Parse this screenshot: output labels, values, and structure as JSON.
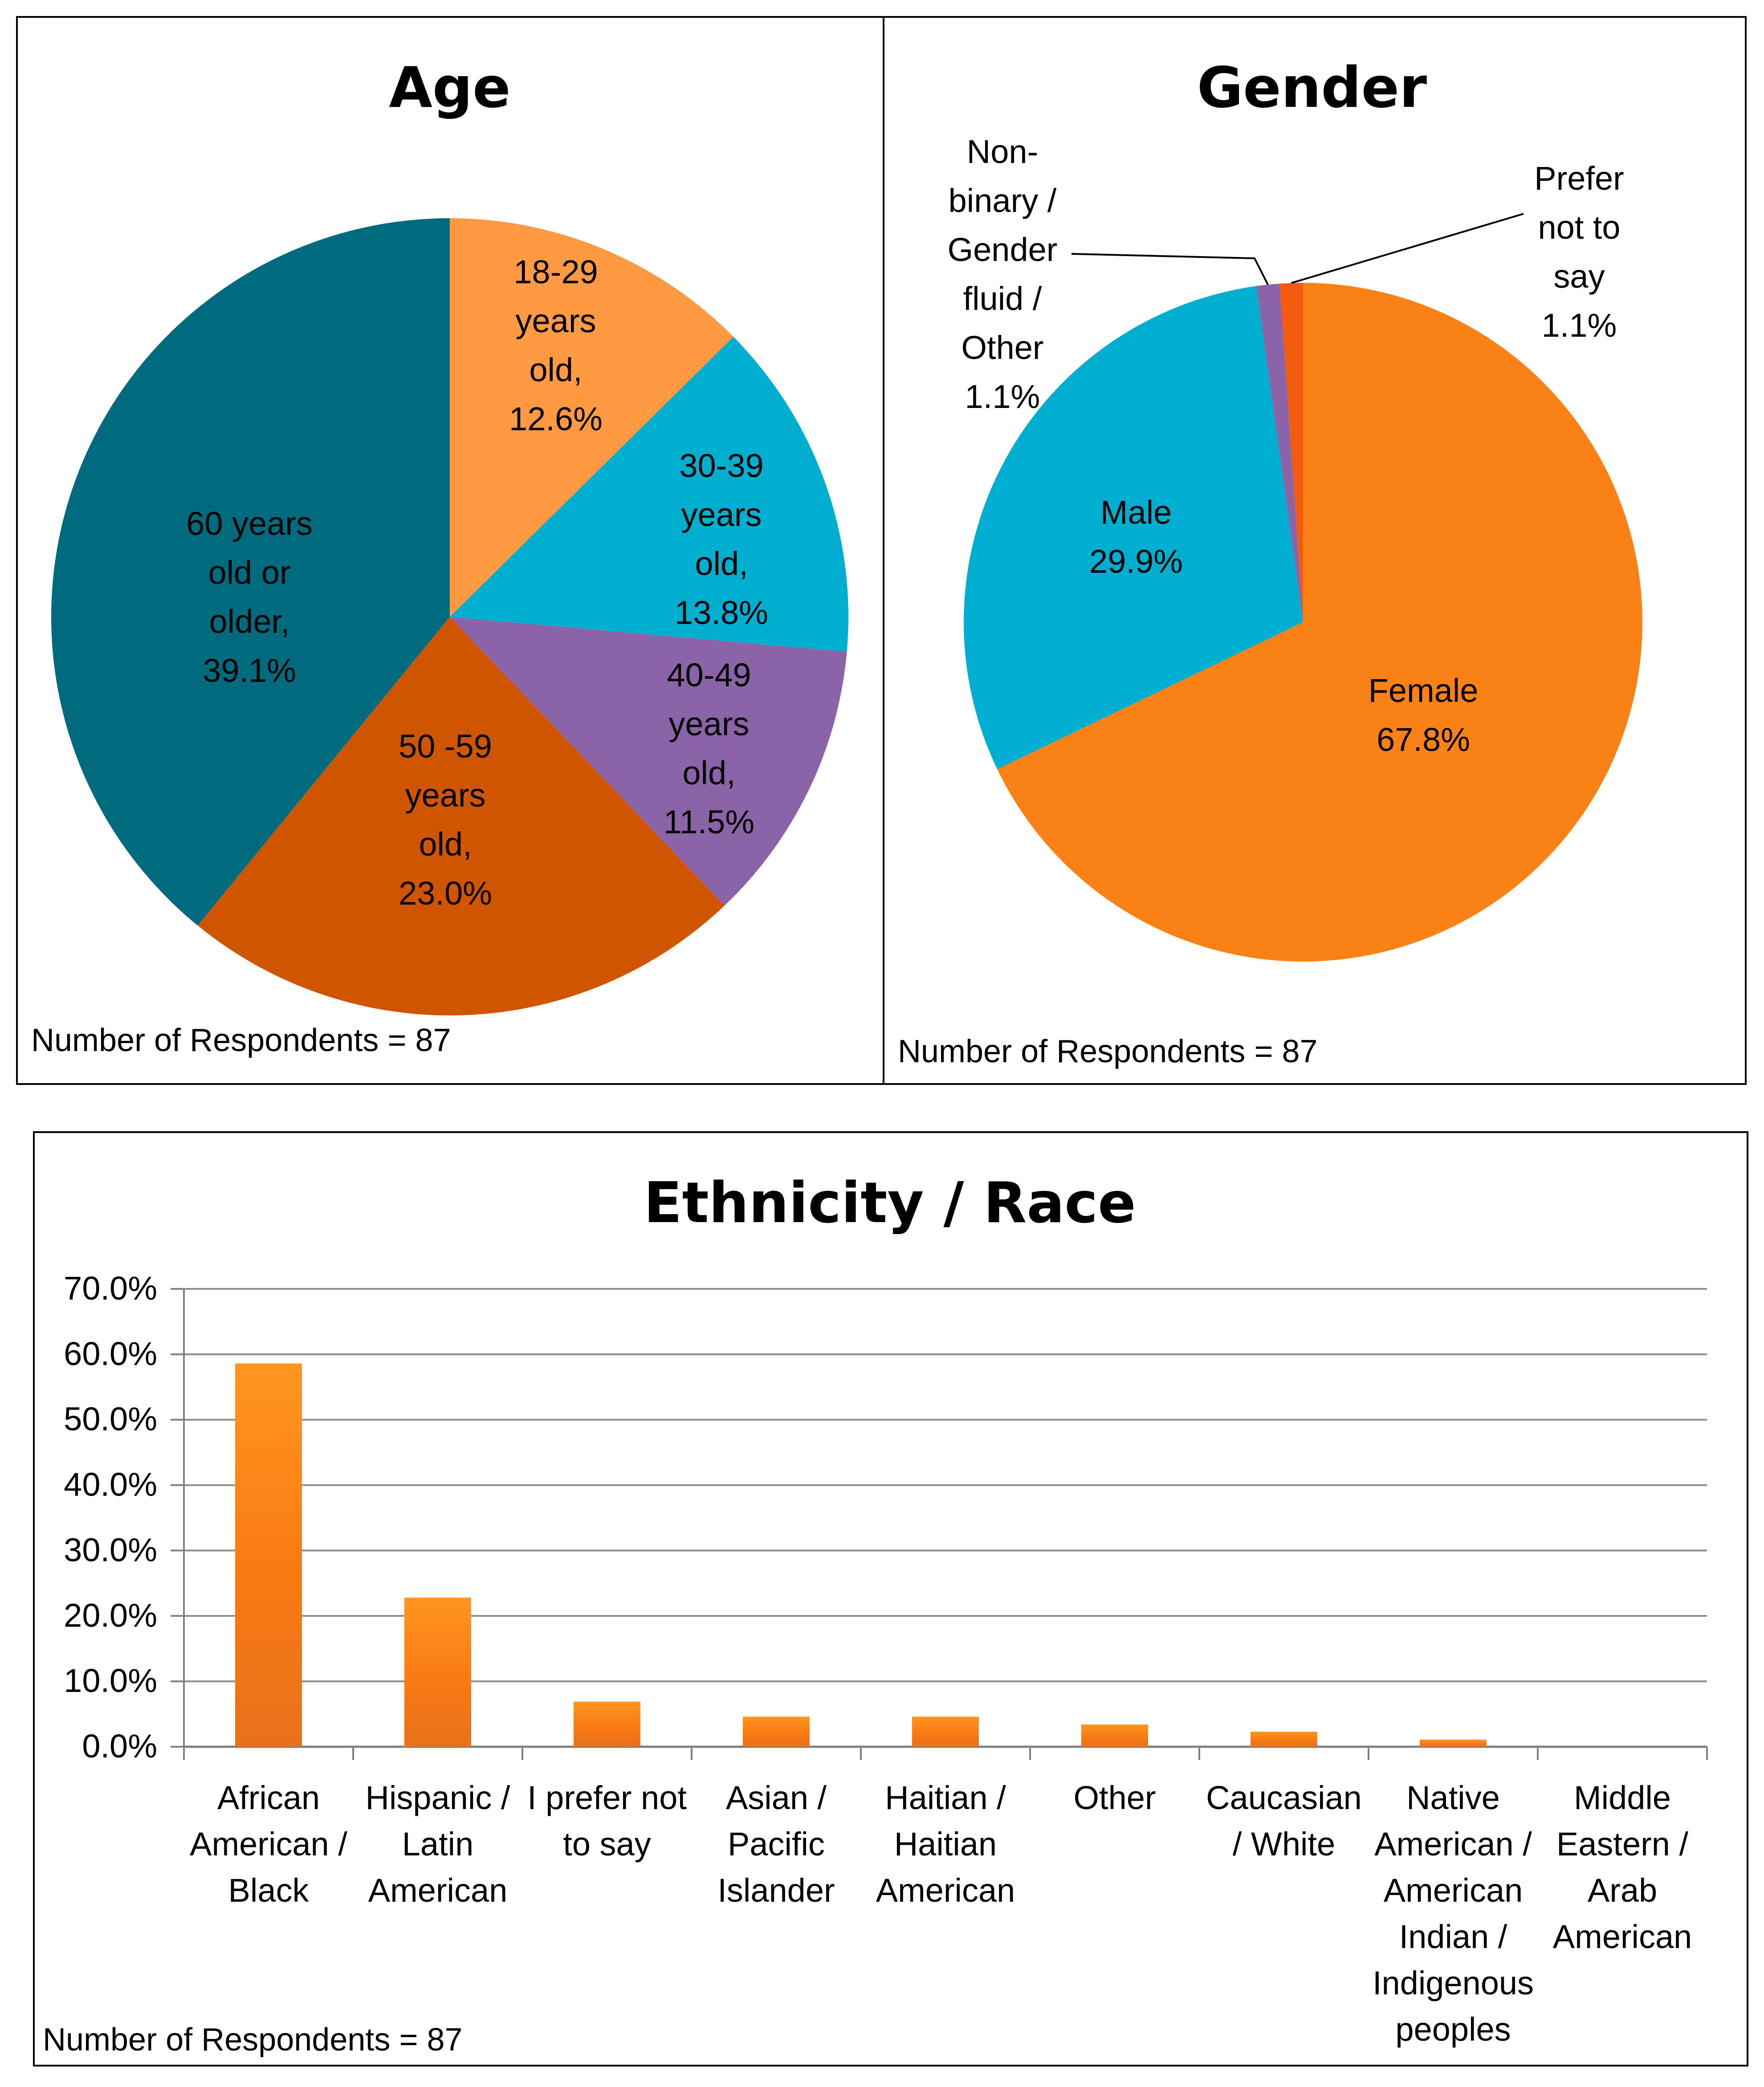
{
  "respondents_label": "Number of Respondents = 87",
  "chart_data": [
    {
      "type": "pie",
      "title": "Age",
      "slices": [
        {
          "label": [
            "18-29",
            "years",
            "old,",
            "12.6%"
          ],
          "value": 12.6,
          "color": "#FF9A42"
        },
        {
          "label": [
            "30-39",
            "years",
            "old,",
            "13.8%"
          ],
          "value": 13.8,
          "color": "#00AFCF"
        },
        {
          "label": [
            "40-49",
            "years",
            "old,",
            "11.5%"
          ],
          "value": 11.5,
          "color": "#8A63A8"
        },
        {
          "label": [
            "50 -59",
            "years",
            "old,",
            "23.0%"
          ],
          "value": 23.0,
          "color": "#D05500"
        },
        {
          "label": [
            "60 years",
            "old or",
            "older,",
            "39.1%"
          ],
          "value": 39.1,
          "color": "#006A7E"
        }
      ],
      "footnote": "Number of Respondents = 87"
    },
    {
      "type": "pie",
      "title": "Gender",
      "slices": [
        {
          "label": [
            "Female",
            "67.8%"
          ],
          "value": 67.8,
          "color": "#F98116"
        },
        {
          "label": [
            "Male",
            "29.9%"
          ],
          "value": 29.9,
          "color": "#00AED1"
        },
        {
          "label": [
            "Non-",
            "binary /",
            "Gender",
            "fluid /",
            "Other",
            "1.1%"
          ],
          "value": 1.1,
          "color": "#8A63A8"
        },
        {
          "label": [
            "Prefer",
            "not to",
            "say",
            "1.1%"
          ],
          "value": 1.1,
          "color": "#F35B0E"
        }
      ],
      "footnote": "Number of Respondents = 87"
    },
    {
      "type": "bar",
      "title": "Ethnicity / Race",
      "categories": [
        [
          "African",
          "American /",
          "Black"
        ],
        [
          "Hispanic /",
          "Latin",
          "American"
        ],
        [
          "I prefer not",
          "to say"
        ],
        [
          "Asian /",
          "Pacific",
          "Islander"
        ],
        [
          "Haitian /",
          "Haitian",
          "American"
        ],
        [
          "Other"
        ],
        [
          "Caucasian",
          "/ White"
        ],
        [
          "Native",
          "American /",
          "American",
          "Indian /",
          "Indigenous",
          "peoples"
        ],
        [
          "Middle",
          "Eastern /",
          "Arab",
          "American"
        ]
      ],
      "values": [
        58.6,
        22.8,
        6.9,
        4.6,
        4.6,
        3.4,
        2.3,
        1.1,
        0.0
      ],
      "yticks": [
        "0.0%",
        "10.0%",
        "20.0%",
        "30.0%",
        "40.0%",
        "50.0%",
        "60.0%",
        "70.0%"
      ],
      "ylim": [
        0,
        70
      ],
      "color": "#F98116",
      "footnote": "Number of Respondents = 87"
    }
  ]
}
